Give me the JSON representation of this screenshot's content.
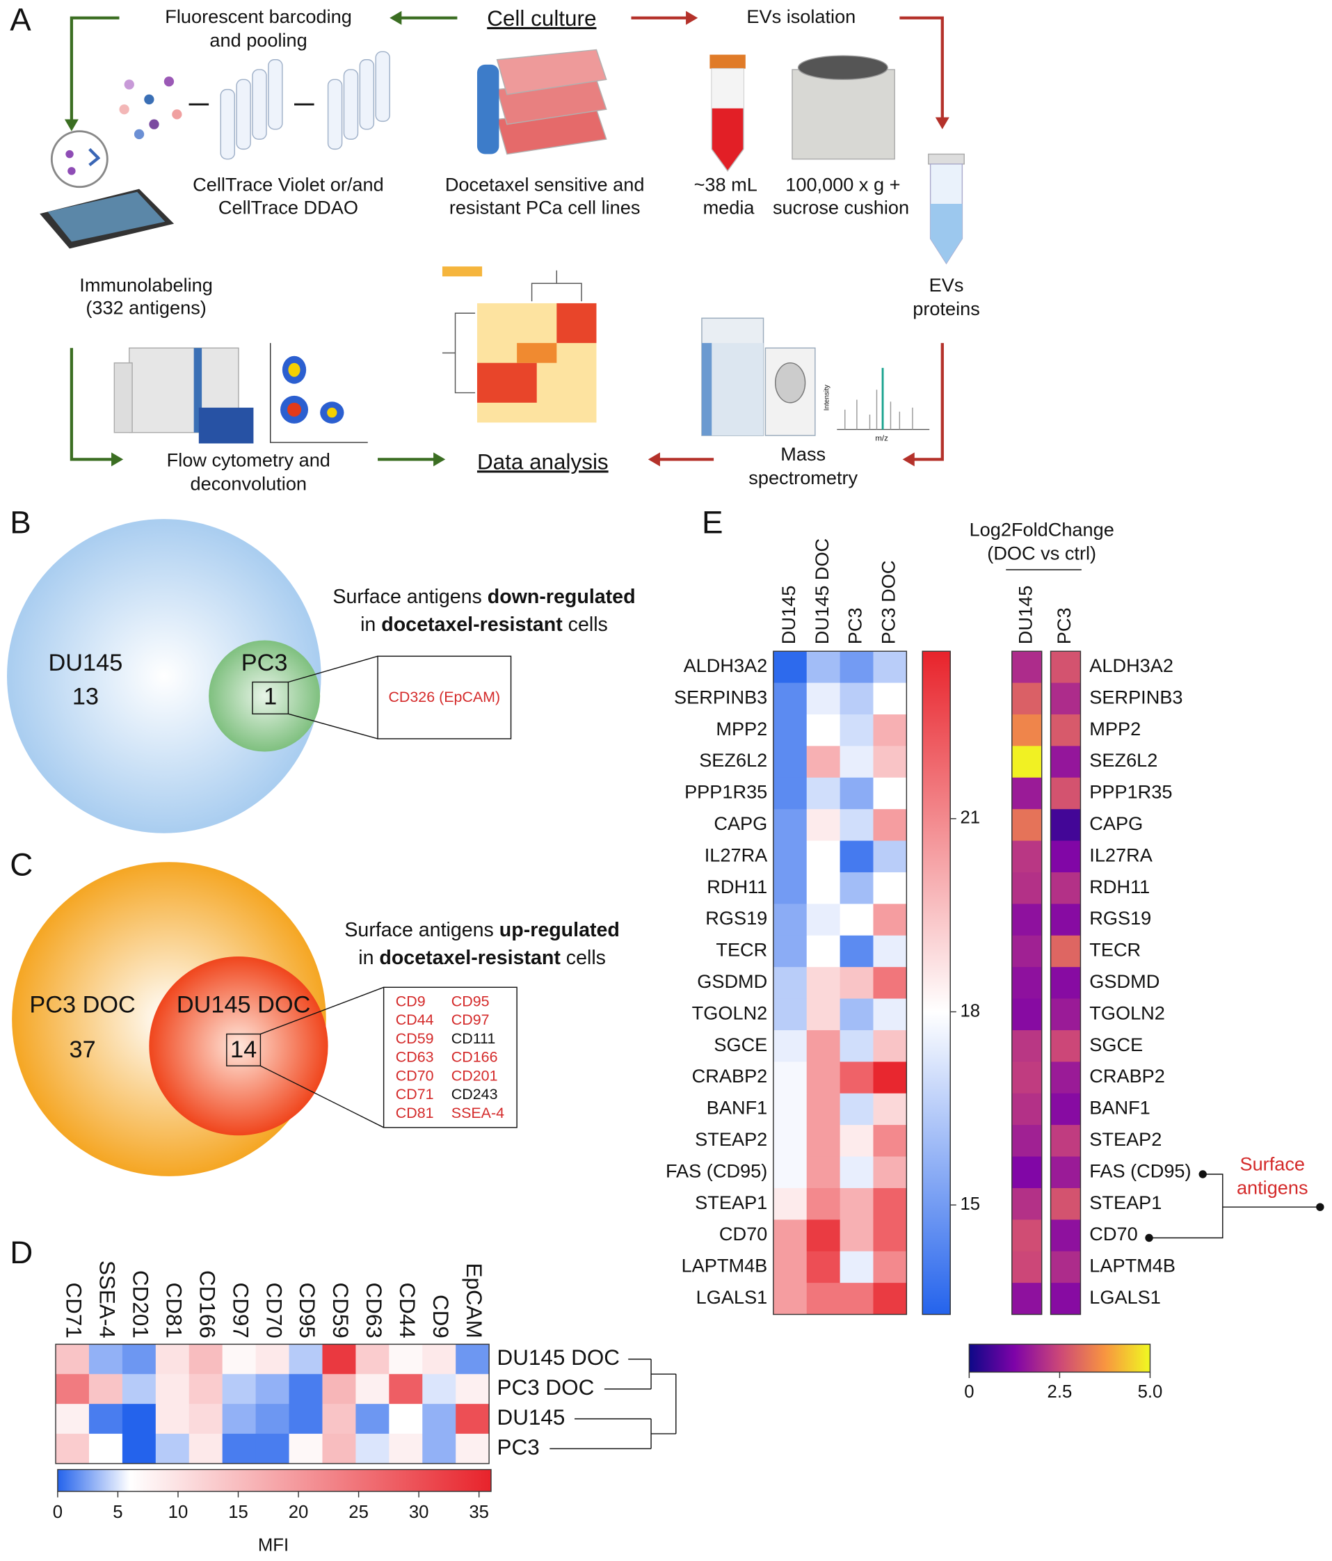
{
  "panel_a": {
    "label": "A",
    "cell_culture": "Cell culture",
    "barcoding": [
      "Fluorescent barcoding",
      "and pooling"
    ],
    "celltrace": [
      "CellTrace Violet or/and",
      "CellTrace DDAO"
    ],
    "cell_lines": [
      "Docetaxel sensitive and",
      "resistant PCa cell lines"
    ],
    "evs_isolation": "EVs isolation",
    "media": [
      "~38 mL",
      "media"
    ],
    "centrifuge": [
      "100,000 x g +",
      "sucrose cushion"
    ],
    "immunolabeling": [
      "Immunolabeling",
      "(332 antigens)"
    ],
    "evs_proteins": [
      "EVs",
      "proteins"
    ],
    "flow": [
      "Flow cytometry and",
      "deconvolution"
    ],
    "data_analysis": "Data analysis",
    "mass_spec": [
      "Mass",
      "spectrometry"
    ],
    "spectrum_axes": [
      "Intensity",
      "m/z"
    ]
  },
  "panel_b": {
    "label": "B",
    "outer": {
      "name": "DU145",
      "count": 13
    },
    "inner": {
      "name": "PC3",
      "count": 1
    },
    "callout": "CD326 (EpCAM)",
    "annotation": [
      [
        "Surface antigens ",
        "down-regulated"
      ],
      [
        "in ",
        "docetaxel-resistant",
        " cells"
      ]
    ]
  },
  "panel_c": {
    "label": "C",
    "outer": {
      "name": "PC3 DOC",
      "count": 37
    },
    "inner": {
      "name": "DU145 DOC",
      "count": 14
    },
    "highlight_color": "#d42a2a",
    "antigens": [
      {
        "name": "CD9",
        "highlight": true
      },
      {
        "name": "CD44",
        "highlight": true
      },
      {
        "name": "CD59",
        "highlight": true
      },
      {
        "name": "CD63",
        "highlight": true
      },
      {
        "name": "CD70",
        "highlight": true
      },
      {
        "name": "CD71",
        "highlight": true
      },
      {
        "name": "CD81",
        "highlight": true
      },
      {
        "name": "CD95",
        "highlight": true
      },
      {
        "name": "CD97",
        "highlight": true
      },
      {
        "name": "CD111",
        "highlight": false
      },
      {
        "name": "CD166",
        "highlight": true
      },
      {
        "name": "CD201",
        "highlight": true
      },
      {
        "name": "CD243",
        "highlight": false
      },
      {
        "name": "SSEA-4",
        "highlight": true
      }
    ],
    "annotation": [
      [
        "Surface antigens ",
        "up-regulated"
      ],
      [
        "in ",
        "docetaxel-resistant",
        " cells"
      ]
    ]
  },
  "panel_d": {
    "label": "D",
    "type": "heatmap",
    "columns": [
      "CD71",
      "SSEA-4",
      "CD201",
      "CD81",
      "CD166",
      "CD97",
      "CD70",
      "CD95",
      "CD59",
      "CD63",
      "CD44",
      "CD9",
      "EpCAM"
    ],
    "rows": [
      {
        "name": "DU145 DOC",
        "values": [
          14,
          3,
          2,
          10,
          15,
          7,
          9,
          4,
          33,
          13,
          7,
          9,
          2
        ]
      },
      {
        "name": "PC3 DOC",
        "values": [
          24,
          14,
          4,
          9,
          13,
          4,
          3,
          1,
          16,
          8,
          28,
          5,
          8
        ]
      },
      {
        "name": "DU145",
        "values": [
          8,
          1,
          0,
          9,
          11,
          3,
          2,
          1,
          14,
          2,
          6,
          3,
          30
        ]
      },
      {
        "name": "PC3",
        "values": [
          13,
          6,
          0,
          4,
          9,
          1,
          1,
          7,
          15,
          5,
          8,
          3,
          8
        ]
      }
    ],
    "colorbar": {
      "label": "MFI",
      "range": [
        0,
        36
      ],
      "ticks": [
        0,
        5,
        10,
        15,
        20,
        25,
        30,
        35
      ],
      "colors": [
        "#2463ec",
        "#ffffff",
        "#e8232b"
      ],
      "color_stops": [
        0,
        6,
        36
      ]
    }
  },
  "panel_e": {
    "label": "E",
    "type": "heatmap",
    "columns": [
      "DU145",
      "DU145 DOC",
      "PC3",
      "PC3 DOC"
    ],
    "rows": [
      {
        "name": "ALDH3A2",
        "values": [
          13.5,
          16,
          15,
          16.5
        ],
        "log2fc": [
          2.0,
          2.7
        ]
      },
      {
        "name": "SERPINB3",
        "values": [
          14.5,
          17.5,
          16.5,
          18
        ],
        "log2fc": [
          2.9,
          2.0
        ]
      },
      {
        "name": "MPP2",
        "values": [
          14.5,
          18,
          17,
          20
        ],
        "log2fc": [
          3.5,
          2.8
        ]
      },
      {
        "name": "SEZ6L2",
        "values": [
          14.5,
          20,
          17.5,
          19.5
        ],
        "log2fc": [
          4.9,
          1.6
        ]
      },
      {
        "name": "PPP1R35",
        "values": [
          14.5,
          17,
          15.5,
          18
        ],
        "log2fc": [
          1.7,
          2.7
        ]
      },
      {
        "name": "CAPG",
        "values": [
          15,
          18.5,
          17,
          20.5
        ],
        "log2fc": [
          3.2,
          0.6
        ]
      },
      {
        "name": "IL27RA",
        "values": [
          15,
          18,
          14,
          16.5
        ],
        "log2fc": [
          2.2,
          1.3
        ]
      },
      {
        "name": "RDH11",
        "values": [
          15,
          18,
          16,
          18
        ],
        "log2fc": [
          2.1,
          2.1
        ]
      },
      {
        "name": "RGS19",
        "values": [
          15.5,
          17.5,
          18,
          20.5
        ],
        "log2fc": [
          1.5,
          1.4
        ]
      },
      {
        "name": "TECR",
        "values": [
          15.5,
          18,
          14.5,
          17.5
        ],
        "log2fc": [
          1.8,
          3.0
        ]
      },
      {
        "name": "GSDMD",
        "values": [
          16.5,
          19,
          19.5,
          21.5
        ],
        "log2fc": [
          1.5,
          1.4
        ]
      },
      {
        "name": "TGOLN2",
        "values": [
          16.5,
          19,
          16,
          17.5
        ],
        "log2fc": [
          1.4,
          1.7
        ]
      },
      {
        "name": "SGCE",
        "values": [
          17.5,
          20.5,
          17,
          19.5
        ],
        "log2fc": [
          2.2,
          2.5
        ]
      },
      {
        "name": "CRABP2",
        "values": [
          17.8,
          20.5,
          22,
          23.5
        ],
        "log2fc": [
          2.3,
          1.7
        ]
      },
      {
        "name": "BANF1",
        "values": [
          17.8,
          20.5,
          17,
          19
        ],
        "log2fc": [
          2.1,
          1.4
        ]
      },
      {
        "name": "STEAP2",
        "values": [
          17.8,
          20.5,
          18.5,
          21
        ],
        "log2fc": [
          1.8,
          2.3
        ]
      },
      {
        "name": "FAS (CD95)",
        "values": [
          17.8,
          20.5,
          17.5,
          20
        ],
        "log2fc": [
          1.3,
          1.7
        ]
      },
      {
        "name": "STEAP1",
        "values": [
          18.5,
          21,
          20,
          22
        ],
        "log2fc": [
          2.1,
          2.7
        ]
      },
      {
        "name": "CD70",
        "values": [
          20.5,
          23,
          20,
          22
        ],
        "log2fc": [
          2.6,
          1.5
        ]
      },
      {
        "name": "LAPTM4B",
        "values": [
          20.5,
          22.5,
          17.5,
          21
        ],
        "log2fc": [
          2.5,
          2.0
        ]
      },
      {
        "name": "LGALS1",
        "values": [
          20.5,
          21.5,
          21.5,
          23
        ],
        "log2fc": [
          1.5,
          1.4
        ]
      }
    ],
    "colorbar": {
      "range": [
        13.3,
        23.6
      ],
      "ticks": [
        15,
        18,
        21
      ],
      "colors": [
        "#2463ec",
        "#ffffff",
        "#e8232b"
      ],
      "color_stops": [
        13.3,
        18,
        23.6
      ]
    },
    "log2fc": {
      "title": [
        "Log2FoldChange",
        "(DOC vs ctrl)"
      ],
      "columns": [
        "DU145",
        "PC3"
      ],
      "range": [
        0,
        5
      ],
      "ticks": [
        0,
        2.5,
        {
          "value": 5,
          "label": "5.0"
        }
      ],
      "colors": [
        "#0d0887",
        "#7e03a8",
        "#cc4778",
        "#f89540",
        "#f0f921"
      ]
    },
    "surface_antigens": {
      "text": [
        "Surface",
        "antigens"
      ],
      "color": "#d42a2a"
    }
  }
}
